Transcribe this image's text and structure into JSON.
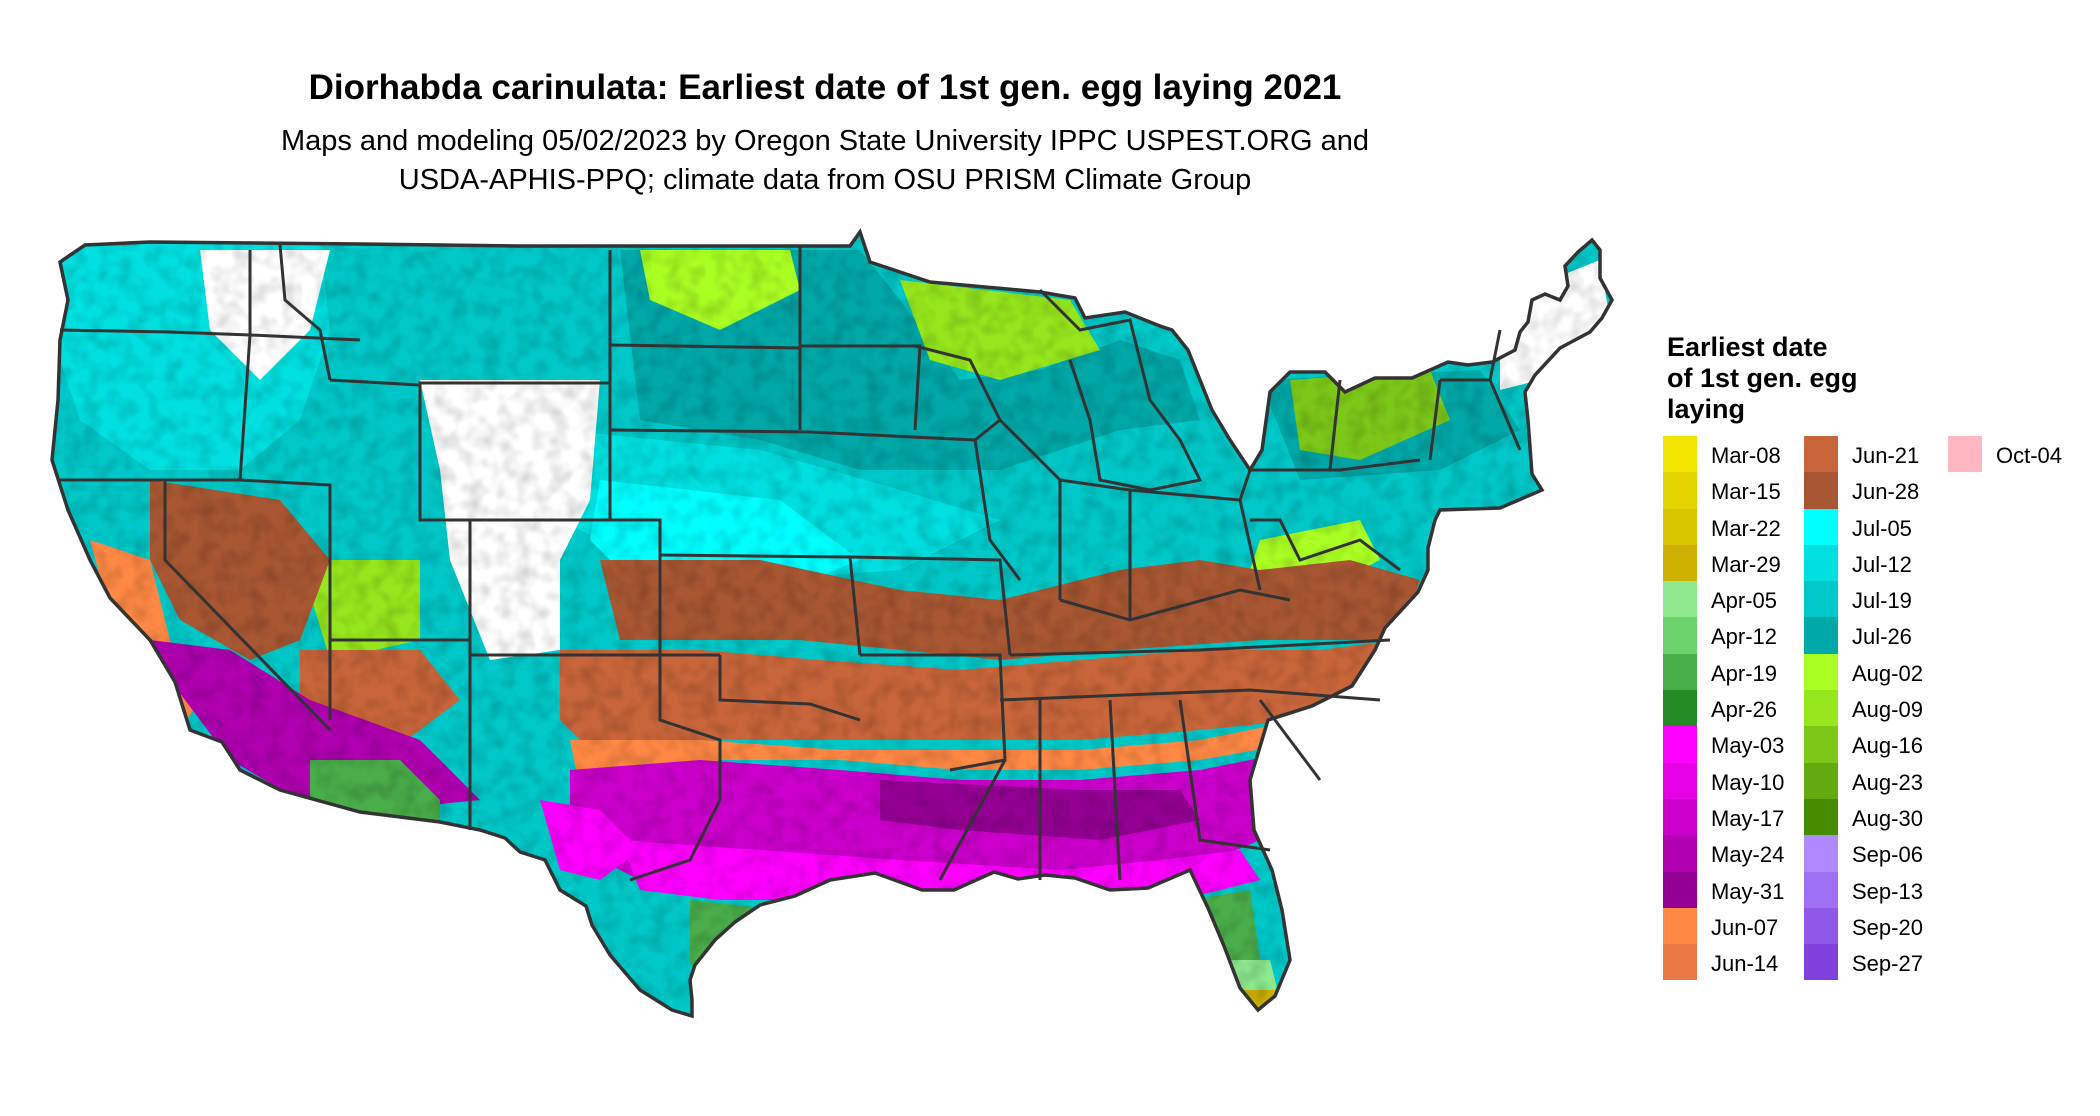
{
  "title": "Diorhabda carinulata: Earliest date of 1st gen. egg laying 2021",
  "subtitle_lines": [
    "Maps and modeling 05/02/2023 by Oregon State University IPPC USPEST.ORG and",
    "USDA-APHIS-PPQ; climate data from OSU PRISM Climate Group"
  ],
  "legend": {
    "title_lines": [
      "Earliest date",
      "of 1st gen. egg",
      "laying"
    ],
    "columns": [
      [
        {
          "label": "Mar-08",
          "color": "#f2e600"
        },
        {
          "label": "Mar-15",
          "color": "#e3d400"
        },
        {
          "label": "Mar-22",
          "color": "#d9c400"
        },
        {
          "label": "Mar-29",
          "color": "#cdb000"
        },
        {
          "label": "Apr-05",
          "color": "#8ee98e"
        },
        {
          "label": "Apr-12",
          "color": "#6cd36c"
        },
        {
          "label": "Apr-19",
          "color": "#49ad49"
        },
        {
          "label": "Apr-26",
          "color": "#238b23"
        },
        {
          "label": "May-03",
          "color": "#ff00ff"
        },
        {
          "label": "May-10",
          "color": "#e600e6"
        },
        {
          "label": "May-17",
          "color": "#cc00cc"
        },
        {
          "label": "May-24",
          "color": "#b000b0"
        },
        {
          "label": "May-31",
          "color": "#940094"
        },
        {
          "label": "Jun-07",
          "color": "#ff8844"
        },
        {
          "label": "Jun-14",
          "color": "#e97a45"
        }
      ],
      [
        {
          "label": "Jun-21",
          "color": "#c8653a"
        },
        {
          "label": "Jun-28",
          "color": "#a85732"
        },
        {
          "label": "Jul-05",
          "color": "#00ffff"
        },
        {
          "label": "Jul-12",
          "color": "#00e0e0"
        },
        {
          "label": "Jul-19",
          "color": "#00c8c8"
        },
        {
          "label": "Jul-26",
          "color": "#00a8a8"
        },
        {
          "label": "Aug-02",
          "color": "#aaff22"
        },
        {
          "label": "Aug-09",
          "color": "#95e61c"
        },
        {
          "label": "Aug-16",
          "color": "#7cc818"
        },
        {
          "label": "Aug-23",
          "color": "#62aa10"
        },
        {
          "label": "Aug-30",
          "color": "#468c00"
        },
        {
          "label": "Sep-06",
          "color": "#b088ff"
        },
        {
          "label": "Sep-13",
          "color": "#a070f4"
        },
        {
          "label": "Sep-20",
          "color": "#9058e8"
        },
        {
          "label": "Sep-27",
          "color": "#8040dd"
        }
      ],
      [
        {
          "label": "Oct-04",
          "color": "#ffb6c1"
        }
      ]
    ]
  }
}
